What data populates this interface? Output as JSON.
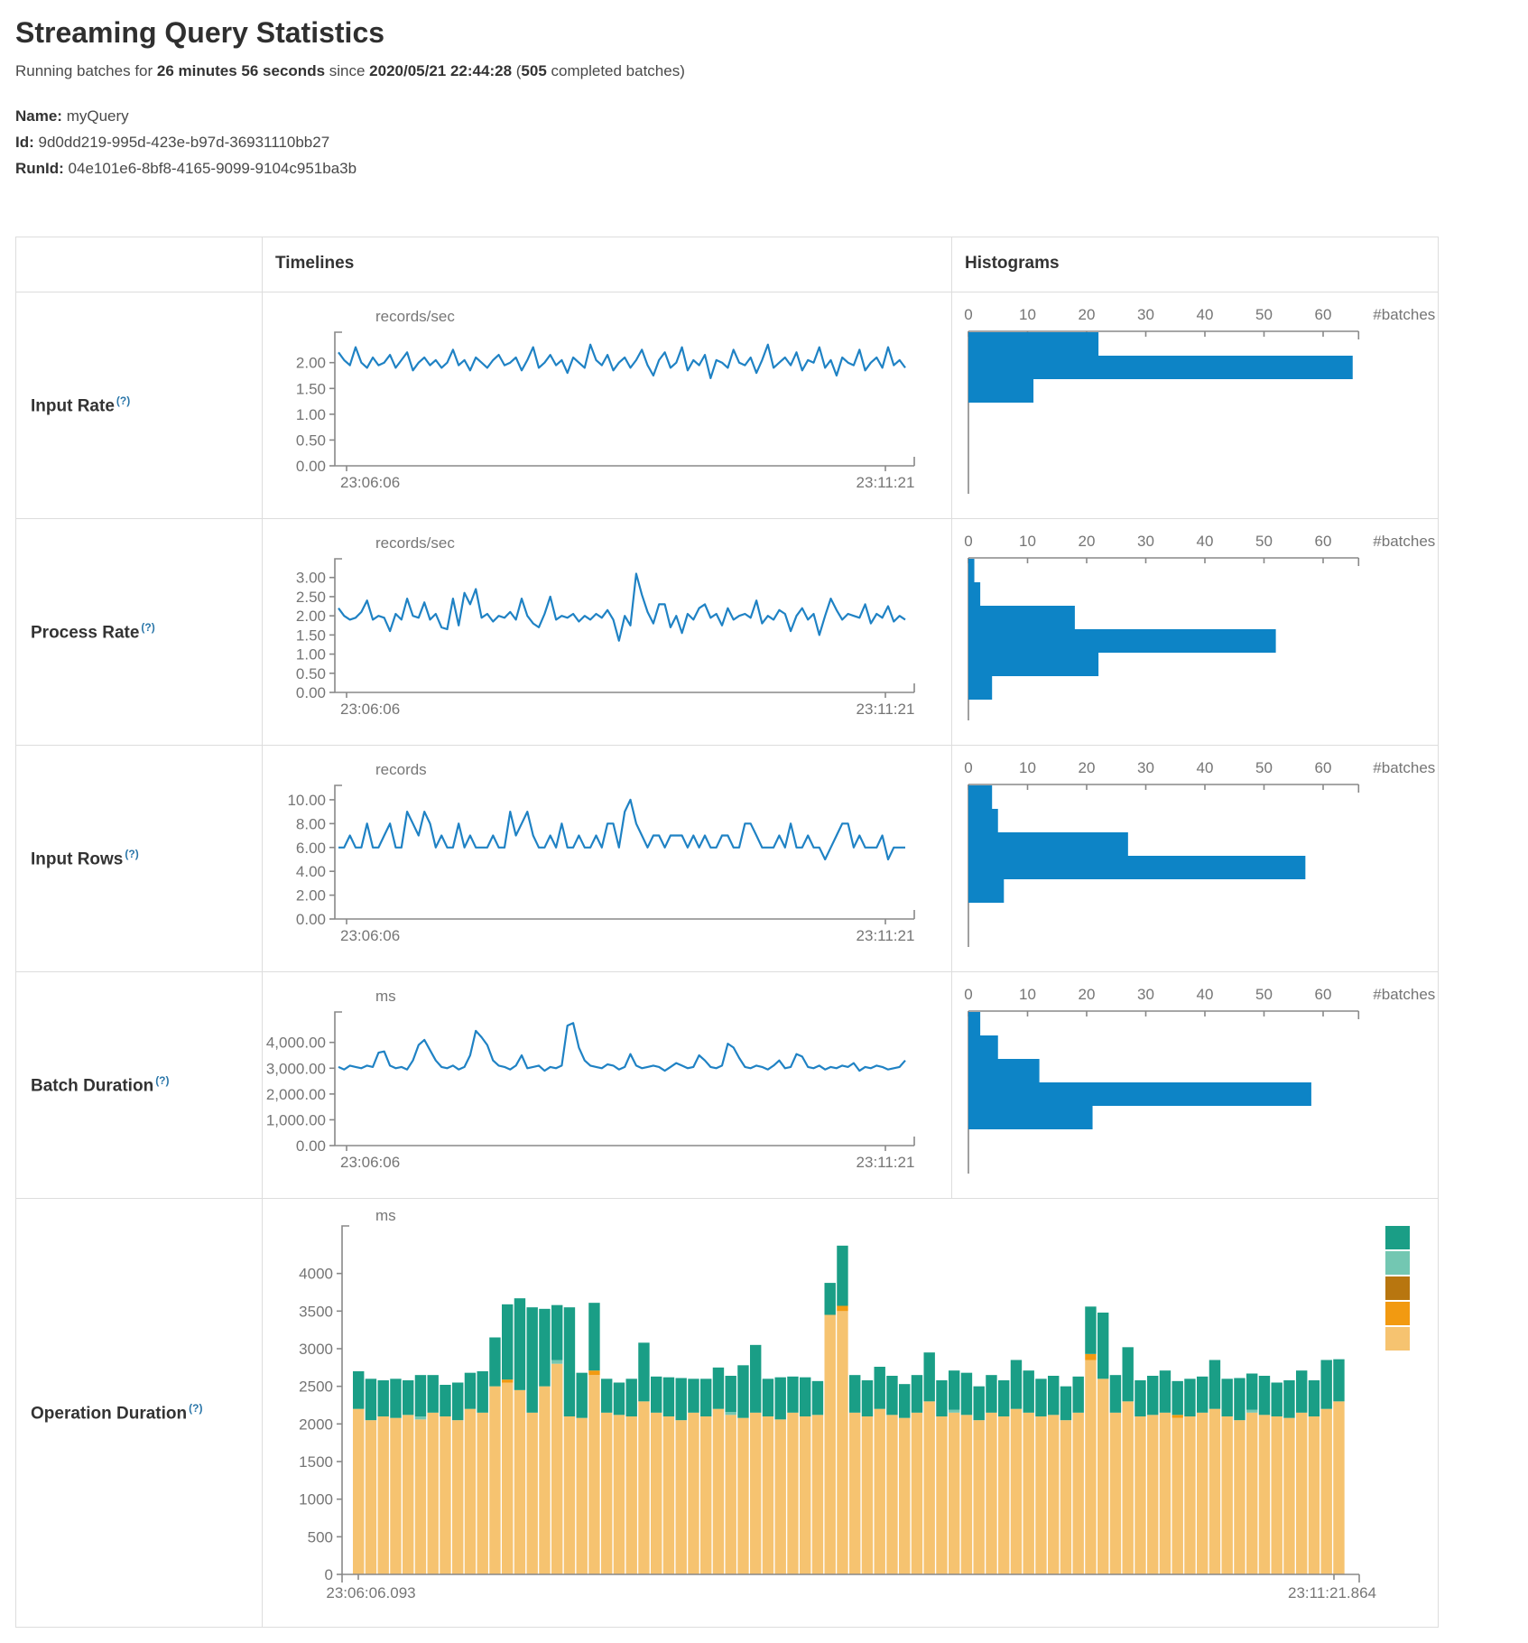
{
  "header": {
    "title": "Streaming Query Statistics",
    "running_prefix": "Running batches for ",
    "duration": "26 minutes 56 seconds",
    "since_word": " since ",
    "start_time": "2020/05/21 22:44:28",
    "paren_open": " (",
    "completed_count": "505",
    "completed_suffix": " completed batches)",
    "name_label": "Name: ",
    "name_value": "myQuery",
    "id_label": "Id: ",
    "id_value": "9d0dd219-995d-423e-b97d-36931110bb27",
    "runid_label": "RunId: ",
    "runid_value": "04e101e6-8bf8-4165-9099-9104c951ba3b"
  },
  "table": {
    "timelines_header": "Timelines",
    "histograms_header": "Histograms",
    "help_glyph": "(?)"
  },
  "colors": {
    "line": "#1f82c4",
    "bar": "#0d84c6",
    "axis": "#888888",
    "tick_text": "#757575",
    "unit_text": "#777777"
  },
  "hist_axis": {
    "tick_values": [
      0,
      10,
      20,
      30,
      40,
      50,
      60
    ],
    "tick_labels": [
      "0",
      "10",
      "20",
      "30",
      "40",
      "50",
      "60"
    ],
    "unit": "#batches",
    "axis_max": 66
  },
  "rows": [
    {
      "label": "Input Rate",
      "timeline": {
        "unit": "records/sec",
        "vmax": 2.45,
        "yticks": [
          {
            "v": 2.0,
            "t": "2.00"
          },
          {
            "v": 1.5,
            "t": "1.50"
          },
          {
            "v": 1.0,
            "t": "1.00"
          },
          {
            "v": 0.5,
            "t": "0.50"
          },
          {
            "v": 0.0,
            "t": "0.00"
          }
        ],
        "xleft": "23:06:06",
        "xright": "23:11:21",
        "values": [
          2.2,
          2.05,
          1.95,
          2.3,
          2.0,
          1.9,
          2.1,
          1.95,
          2.0,
          2.15,
          1.9,
          2.05,
          2.2,
          1.85,
          2.0,
          2.1,
          1.95,
          2.05,
          1.9,
          2.0,
          2.25,
          1.95,
          2.05,
          1.85,
          2.1,
          2.0,
          1.9,
          2.05,
          2.15,
          1.95,
          2.0,
          2.1,
          1.85,
          2.05,
          2.3,
          1.9,
          2.0,
          2.15,
          1.95,
          2.05,
          1.8,
          2.1,
          2.0,
          1.9,
          2.35,
          2.05,
          1.95,
          2.15,
          1.85,
          2.0,
          2.1,
          1.9,
          2.05,
          2.25,
          1.95,
          1.75,
          2.05,
          2.2,
          1.9,
          2.0,
          2.3,
          1.85,
          2.05,
          1.95,
          2.15,
          1.7,
          2.05,
          2.0,
          1.9,
          2.25,
          2.0,
          1.95,
          2.1,
          1.8,
          2.05,
          2.35,
          1.9,
          2.0,
          2.1,
          1.95,
          2.2,
          1.85,
          2.05,
          2.0,
          2.3,
          1.9,
          2.05,
          1.75,
          2.1,
          2.0,
          1.95,
          2.25,
          1.85,
          2.0,
          2.1,
          1.9,
          2.3,
          1.95,
          2.05,
          1.9
        ]
      },
      "hist_bars": [
        22,
        65,
        11
      ]
    },
    {
      "label": "Process Rate",
      "timeline": {
        "unit": "records/sec",
        "vmax": 3.3,
        "yticks": [
          {
            "v": 3.0,
            "t": "3.00"
          },
          {
            "v": 2.5,
            "t": "2.50"
          },
          {
            "v": 2.0,
            "t": "2.00"
          },
          {
            "v": 1.5,
            "t": "1.50"
          },
          {
            "v": 1.0,
            "t": "1.00"
          },
          {
            "v": 0.5,
            "t": "0.50"
          },
          {
            "v": 0.0,
            "t": "0.00"
          }
        ],
        "xleft": "23:06:06",
        "xright": "23:11:21",
        "values": [
          2.2,
          2.0,
          1.9,
          1.95,
          2.1,
          2.4,
          1.9,
          2.0,
          1.95,
          1.6,
          2.05,
          1.9,
          2.45,
          2.0,
          1.95,
          2.35,
          1.9,
          2.05,
          1.7,
          1.65,
          2.45,
          1.75,
          2.6,
          2.3,
          2.7,
          1.95,
          2.05,
          1.85,
          2.0,
          1.95,
          2.1,
          1.9,
          2.45,
          2.0,
          1.8,
          1.7,
          2.05,
          2.5,
          1.9,
          2.0,
          1.95,
          2.05,
          1.85,
          2.0,
          1.9,
          2.05,
          1.95,
          2.15,
          1.9,
          1.35,
          2.0,
          1.75,
          3.1,
          2.55,
          2.1,
          1.8,
          2.3,
          2.3,
          1.7,
          2.0,
          1.55,
          2.05,
          1.9,
          2.2,
          2.3,
          1.95,
          2.05,
          1.75,
          2.2,
          1.9,
          2.0,
          2.05,
          1.95,
          2.4,
          1.8,
          2.0,
          1.9,
          2.15,
          2.05,
          1.6,
          2.0,
          2.2,
          1.9,
          2.05,
          1.5,
          2.0,
          2.45,
          2.15,
          1.9,
          2.05,
          2.0,
          1.95,
          2.3,
          1.8,
          2.05,
          1.95,
          2.25,
          1.85,
          2.0,
          1.9
        ]
      },
      "hist_bars": [
        1,
        2,
        18,
        52,
        22,
        4
      ]
    },
    {
      "label": "Input Rows",
      "timeline": {
        "unit": "records",
        "vmax": 10.6,
        "yticks": [
          {
            "v": 10,
            "t": "10.00"
          },
          {
            "v": 8,
            "t": "8.00"
          },
          {
            "v": 6,
            "t": "6.00"
          },
          {
            "v": 4,
            "t": "4.00"
          },
          {
            "v": 2,
            "t": "2.00"
          },
          {
            "v": 0,
            "t": "0.00"
          }
        ],
        "xleft": "23:06:06",
        "xright": "23:11:21",
        "values": [
          6,
          6,
          7,
          6,
          6,
          8,
          6,
          6,
          7,
          8,
          6,
          6,
          9,
          8,
          7,
          9,
          8,
          6,
          7,
          6,
          6,
          8,
          6,
          7,
          6,
          6,
          6,
          7,
          6,
          6,
          9,
          7,
          8,
          9,
          7,
          6,
          6,
          7,
          6,
          8,
          6,
          6,
          7,
          6,
          6,
          7,
          6,
          8,
          8,
          6,
          9,
          10,
          8,
          7,
          6,
          7,
          7,
          6,
          7,
          7,
          7,
          6,
          7,
          6,
          7,
          6,
          6,
          7,
          7,
          6,
          6,
          8,
          8,
          7,
          6,
          6,
          6,
          7,
          6,
          8,
          6,
          6,
          7,
          6,
          6,
          5,
          6,
          7,
          8,
          8,
          6,
          7,
          6,
          6,
          6,
          7,
          5,
          6,
          6,
          6
        ]
      },
      "hist_bars": [
        4,
        5,
        27,
        57,
        6
      ]
    },
    {
      "label": "Batch Duration",
      "timeline": {
        "unit": "ms",
        "vmax": 4900,
        "yticks": [
          {
            "v": 4000,
            "t": "4,000.00"
          },
          {
            "v": 3000,
            "t": "3,000.00"
          },
          {
            "v": 2000,
            "t": "2,000.00"
          },
          {
            "v": 1000,
            "t": "1,000.00"
          },
          {
            "v": 0,
            "t": "0.00"
          }
        ],
        "xleft": "23:06:06",
        "xright": "23:11:21",
        "values": [
          3050,
          2950,
          3100,
          3050,
          3000,
          3100,
          3050,
          3600,
          3650,
          3100,
          3000,
          3050,
          2950,
          3300,
          3900,
          4100,
          3700,
          3300,
          3050,
          3000,
          3100,
          2950,
          3050,
          3500,
          4450,
          4200,
          3900,
          3300,
          3100,
          3050,
          2950,
          3100,
          3500,
          3000,
          3050,
          3100,
          2900,
          3050,
          3000,
          3100,
          4650,
          4750,
          3800,
          3300,
          3100,
          3050,
          3000,
          3150,
          3100,
          2950,
          3050,
          3550,
          3100,
          3000,
          3050,
          3100,
          3050,
          2900,
          3050,
          3200,
          3100,
          3000,
          3050,
          3500,
          3300,
          3050,
          3000,
          3100,
          3950,
          3800,
          3400,
          3050,
          3000,
          3100,
          3050,
          2950,
          3100,
          3300,
          3000,
          3050,
          3550,
          3450,
          3050,
          3000,
          3100,
          2950,
          3050,
          3000,
          3100,
          3050,
          3200,
          2900,
          3050,
          3000,
          3100,
          3050,
          2950,
          3000,
          3050,
          3300
        ]
      },
      "hist_bars": [
        2,
        5,
        12,
        58,
        21
      ]
    }
  ],
  "operation": {
    "label": "Operation Duration",
    "chart": {
      "unit": "ms",
      "vmax": 4500,
      "yticks": [
        {
          "v": 4000,
          "t": "4000"
        },
        {
          "v": 3500,
          "t": "3500"
        },
        {
          "v": 3000,
          "t": "3000"
        },
        {
          "v": 2500,
          "t": "2500"
        },
        {
          "v": 2000,
          "t": "2000"
        },
        {
          "v": 1500,
          "t": "1500"
        },
        {
          "v": 1000,
          "t": "1000"
        },
        {
          "v": 500,
          "t": "500"
        },
        {
          "v": 0,
          "t": "0"
        }
      ],
      "xleft": "23:06:06.093",
      "xright": "23:11:21.864",
      "stack_colors": {
        "tan": "#f6c370",
        "orange": "#f29a11",
        "lteal": "#73c7b2",
        "teal": "#1a9e86"
      },
      "legend_colors": [
        "#1a9e86",
        "#73c7b2",
        "#b8760f",
        "#f29a11",
        "#f6c370"
      ],
      "tan": [
        2200,
        2050,
        2100,
        2080,
        2120,
        2060,
        2150,
        2100,
        2050,
        2200,
        2150,
        2500,
        2550,
        2450,
        2150,
        2500,
        2800,
        2100,
        2080,
        2650,
        2150,
        2120,
        2100,
        2300,
        2150,
        2100,
        2050,
        2150,
        2100,
        2200,
        2120,
        2080,
        2150,
        2100,
        2060,
        2150,
        2100,
        2120,
        3450,
        3500,
        2150,
        2100,
        2200,
        2120,
        2080,
        2150,
        2300,
        2100,
        2150,
        2120,
        2050,
        2150,
        2100,
        2200,
        2150,
        2100,
        2120,
        2050,
        2150,
        2850,
        2600,
        2150,
        2300,
        2100,
        2120,
        2150,
        2080,
        2100,
        2150,
        2200,
        2100,
        2050,
        2150,
        2120,
        2100,
        2080,
        2150,
        2100,
        2200,
        2300
      ],
      "teal": [
        500,
        550,
        480,
        520,
        460,
        550,
        500,
        420,
        500,
        480,
        550,
        650,
        1000,
        1220,
        1400,
        1030,
        730,
        1450,
        600,
        900,
        450,
        430,
        500,
        780,
        480,
        520,
        560,
        450,
        500,
        550,
        480,
        700,
        900,
        500,
        560,
        480,
        520,
        450,
        425,
        800,
        500,
        480,
        560,
        520,
        450,
        500,
        650,
        480,
        520,
        560,
        450,
        500,
        480,
        650,
        560,
        500,
        520,
        450,
        480,
        630,
        880,
        500,
        720,
        480,
        520,
        560,
        450,
        500,
        480,
        650,
        500,
        560,
        480,
        520,
        450,
        500,
        560,
        480,
        650,
        560
      ],
      "orange": {
        "12": 40,
        "19": 60,
        "39": 70,
        "59": 80,
        "66": 40
      },
      "lteal": {
        "5": 40,
        "16": 50,
        "30": 40,
        "48": 40,
        "72": 40
      }
    }
  }
}
